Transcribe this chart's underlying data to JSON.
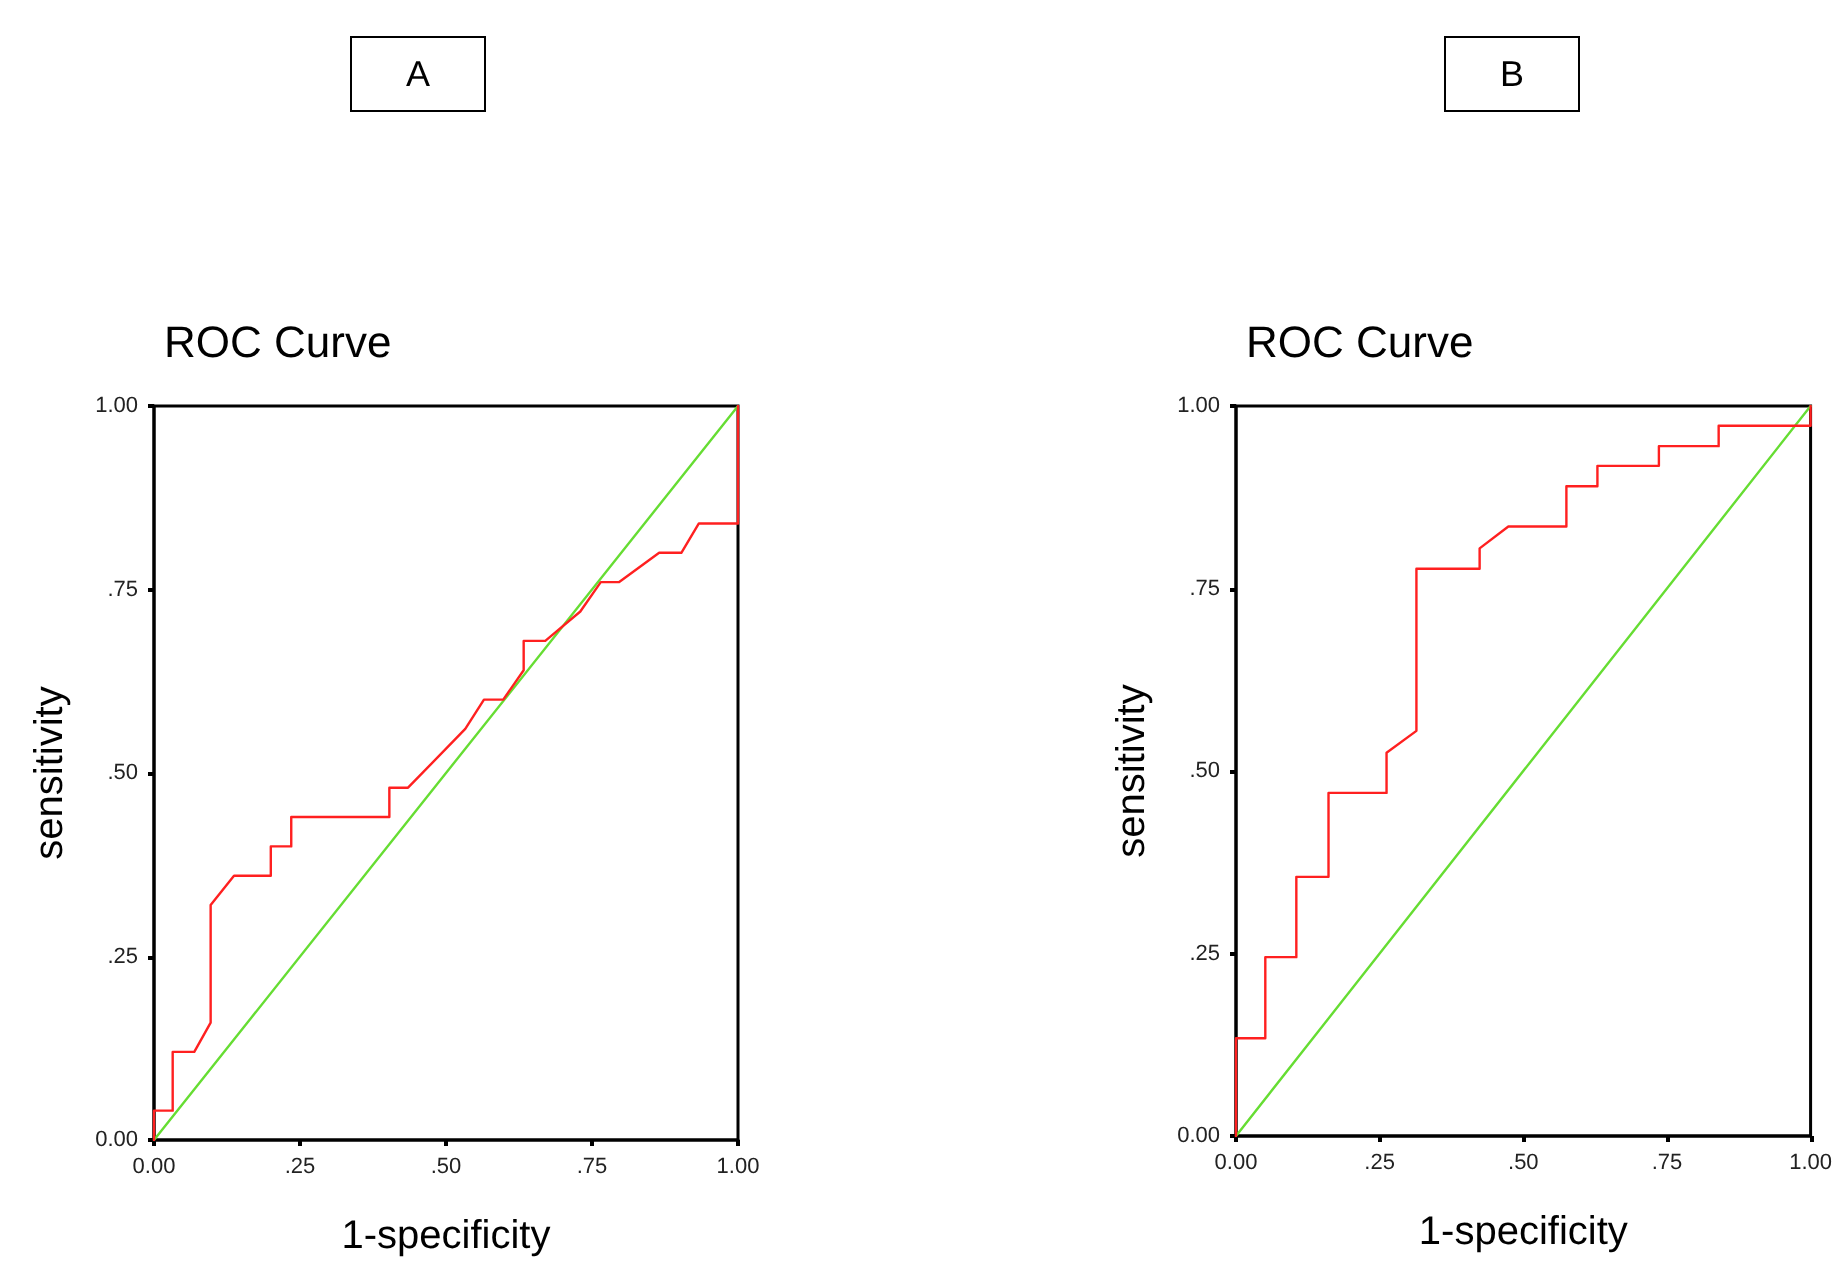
{
  "chart_data": [
    {
      "type": "line",
      "title": "A",
      "subtitle": "ROC Curve",
      "xlabel": "1-specificity",
      "ylabel": "sensitivity",
      "xlim": [
        0,
        1
      ],
      "ylim": [
        0,
        1
      ],
      "xticks": [
        {
          "value": 0,
          "label": "0.00"
        },
        {
          "value": 0.25,
          "label": ".25"
        },
        {
          "value": 0.5,
          "label": ".50"
        },
        {
          "value": 0.75,
          "label": ".75"
        },
        {
          "value": 1,
          "label": "1.00"
        }
      ],
      "yticks": [
        {
          "value": 0,
          "label": "0.00"
        },
        {
          "value": 0.25,
          "label": ".25"
        },
        {
          "value": 0.5,
          "label": ".50"
        },
        {
          "value": 0.75,
          "label": ".75"
        },
        {
          "value": 1,
          "label": "1.00"
        }
      ],
      "grid": false,
      "marker": "none",
      "series": [
        {
          "color": "#ff2020",
          "x": [
            0,
            0,
            0.032,
            0.032,
            0.069,
            0.097,
            0.097,
            0.137,
            0.2,
            0.2,
            0.235,
            0.235,
            0.403,
            0.403,
            0.435,
            0.533,
            0.565,
            0.598,
            0.633,
            0.633,
            0.67,
            0.73,
            0.765,
            0.796,
            0.865,
            0.903,
            0.933,
            1,
            1
          ],
          "values": [
            0,
            0.04,
            0.04,
            0.12,
            0.12,
            0.16,
            0.32,
            0.36,
            0.36,
            0.4,
            0.4,
            0.44,
            0.44,
            0.48,
            0.48,
            0.56,
            0.6,
            0.6,
            0.64,
            0.68,
            0.68,
            0.72,
            0.76,
            0.76,
            0.8,
            0.8,
            0.84,
            0.84,
            1
          ]
        },
        {
          "color": "#66dd33",
          "x": [
            0,
            1
          ],
          "values": [
            0,
            1
          ]
        }
      ]
    },
    {
      "type": "line",
      "title": "B",
      "subtitle": "ROC Curve",
      "xlabel": "1-specificity",
      "ylabel": "sensitivity",
      "xlim": [
        0,
        1
      ],
      "ylim": [
        0,
        1
      ],
      "xticks": [
        {
          "value": 0,
          "label": "0.00"
        },
        {
          "value": 0.25,
          "label": ".25"
        },
        {
          "value": 0.5,
          "label": ".50"
        },
        {
          "value": 0.75,
          "label": ".75"
        },
        {
          "value": 1,
          "label": "1.00"
        }
      ],
      "yticks": [
        {
          "value": 0,
          "label": "0.00"
        },
        {
          "value": 0.25,
          "label": ".25"
        },
        {
          "value": 0.5,
          "label": ".50"
        },
        {
          "value": 0.75,
          "label": ".75"
        },
        {
          "value": 1,
          "label": "1.00"
        }
      ],
      "grid": false,
      "marker": "none",
      "series": [
        {
          "color": "#ff2020",
          "x": [
            0,
            0,
            0.051,
            0.051,
            0.105,
            0.105,
            0.161,
            0.161,
            0.262,
            0.262,
            0.314,
            0.314,
            0.424,
            0.424,
            0.474,
            0.575,
            0.575,
            0.629,
            0.629,
            0.736,
            0.736,
            0.84,
            0.84,
            1,
            1
          ],
          "values": [
            0,
            0.134,
            0.134,
            0.245,
            0.245,
            0.355,
            0.355,
            0.47,
            0.47,
            0.525,
            0.555,
            0.777,
            0.777,
            0.805,
            0.835,
            0.835,
            0.89,
            0.89,
            0.918,
            0.918,
            0.945,
            0.945,
            0.973,
            0.973,
            1
          ]
        },
        {
          "color": "#66dd33",
          "x": [
            0,
            1
          ],
          "values": [
            0,
            1
          ]
        }
      ]
    }
  ]
}
